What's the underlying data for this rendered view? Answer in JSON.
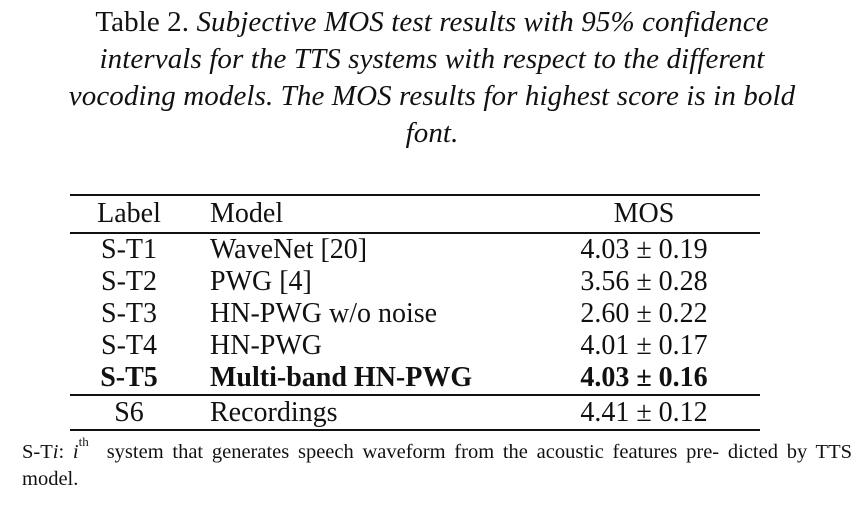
{
  "caption": {
    "prefix": "Table 2. ",
    "line1": "Subjective MOS test results with 95% confidence",
    "line2": "intervals for the TTS systems with respect to the different",
    "line3": "vocoding models. The MOS results for highest score is in bold",
    "line4": "font."
  },
  "table": {
    "headers": {
      "label": "Label",
      "model": "Model",
      "mos": "MOS"
    },
    "rows": [
      {
        "label": "S-T1",
        "model": "WaveNet [20]",
        "mos": "4.03 ± 0.19",
        "bold": false
      },
      {
        "label": "S-T2",
        "model": "PWG [4]",
        "mos": "3.56 ± 0.28",
        "bold": false
      },
      {
        "label": "S-T3",
        "model": "HN-PWG w/o noise",
        "mos": "2.60 ± 0.22",
        "bold": false
      },
      {
        "label": "S-T4",
        "model": "HN-PWG",
        "mos": "4.01 ± 0.17",
        "bold": false
      },
      {
        "label": "S-T5",
        "model": "Multi-band HN-PWG",
        "mos": "4.03 ± 0.16",
        "bold": true
      },
      {
        "label": "S6",
        "model": "Recordings",
        "mos": "4.41 ± 0.12",
        "bold": false
      }
    ]
  },
  "footnote": {
    "prefix": "S-T",
    "var": "i",
    "colon": ": ",
    "var2": "i",
    "sup": "th",
    "text_line1": "system that generates speech waveform from the acoustic features pre-",
    "text_line2": "dicted by TTS model."
  }
}
